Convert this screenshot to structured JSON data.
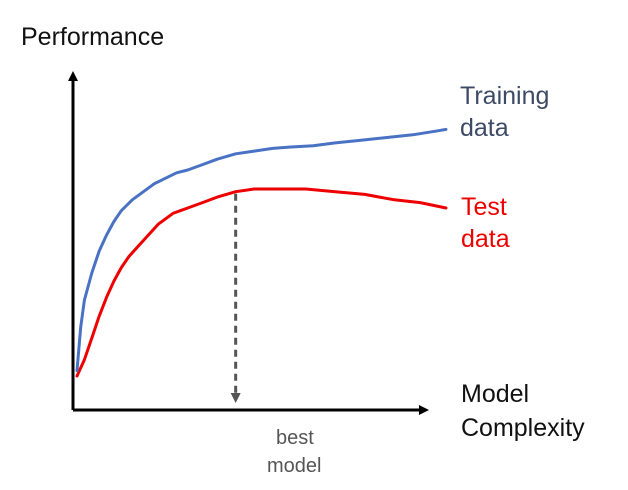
{
  "diagram": {
    "y_axis_label": "Performance",
    "x_axis_label_lines": [
      "Model",
      "Complexity"
    ],
    "best_model_label_lines": [
      "best",
      "model"
    ]
  },
  "chart_data": {
    "type": "line",
    "xlabel": "Model Complexity",
    "ylabel": "Performance",
    "series": [
      {
        "name_lines": [
          "Training",
          "data"
        ],
        "color": "#4a72c4",
        "x": [
          0,
          1,
          2,
          4,
          6,
          8,
          10,
          12,
          15,
          18,
          21,
          24,
          27,
          30,
          34,
          38,
          43,
          48,
          53,
          58,
          64,
          70,
          77,
          84,
          91,
          98,
          100
        ],
        "y": [
          0.02,
          0.18,
          0.28,
          0.38,
          0.46,
          0.52,
          0.57,
          0.61,
          0.65,
          0.68,
          0.71,
          0.73,
          0.75,
          0.76,
          0.78,
          0.8,
          0.82,
          0.83,
          0.84,
          0.845,
          0.85,
          0.86,
          0.87,
          0.88,
          0.89,
          0.905,
          0.91
        ]
      },
      {
        "name_lines": [
          "Test",
          "data"
        ],
        "color": "#ee0000",
        "x": [
          0,
          2,
          4,
          6,
          8,
          10,
          12,
          14,
          16,
          18,
          20,
          22,
          24,
          26,
          28,
          30,
          34,
          38,
          43,
          48,
          55,
          62,
          70,
          78,
          86,
          93,
          100
        ],
        "y": [
          0.0,
          0.06,
          0.14,
          0.22,
          0.29,
          0.35,
          0.4,
          0.44,
          0.47,
          0.5,
          0.53,
          0.56,
          0.58,
          0.6,
          0.61,
          0.62,
          0.64,
          0.66,
          0.68,
          0.69,
          0.69,
          0.69,
          0.68,
          0.67,
          0.65,
          0.64,
          0.62
        ]
      }
    ],
    "annotation": {
      "type": "dashed-drop-line",
      "x": 43,
      "label_lines": [
        "best",
        "model"
      ]
    }
  }
}
